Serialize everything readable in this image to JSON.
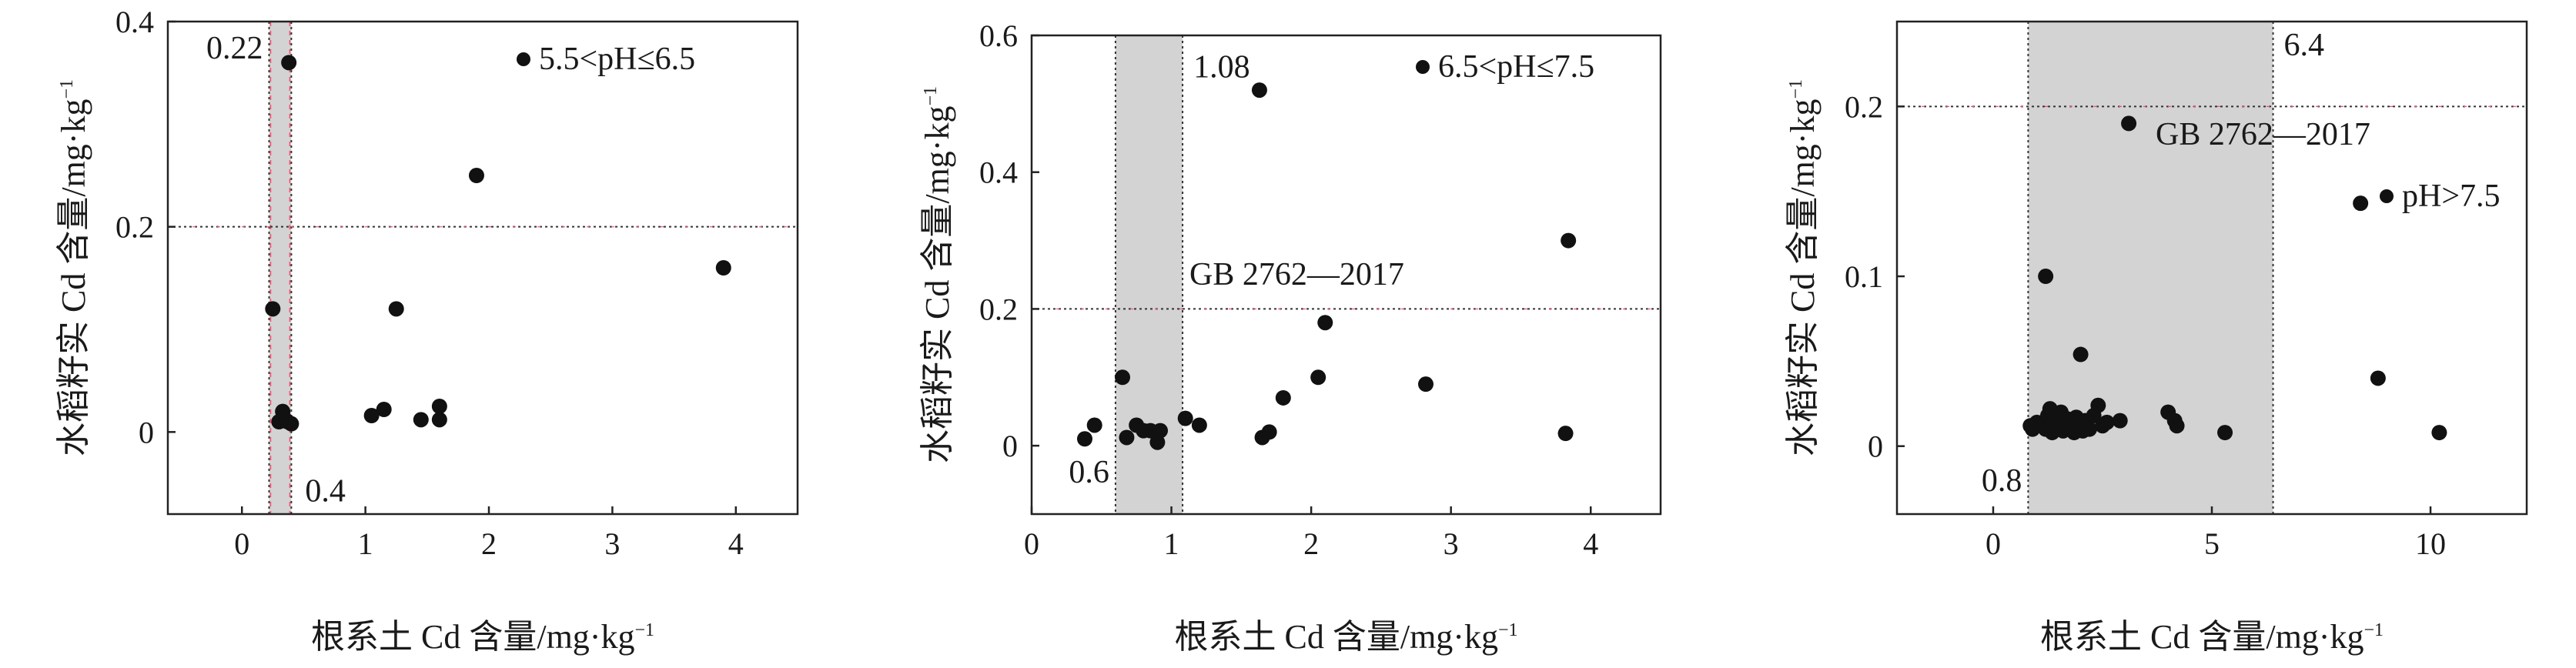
{
  "chart_data": [
    {
      "type": "scatter",
      "title": "",
      "xlabel": "根系土 Cd 含量/mg·kg",
      "xlabel_sup": "−1",
      "ylabel": "水稻籽实 Cd 含量/mg·kg",
      "ylabel_sup": "−1",
      "xlim": [
        -0.6,
        4.5
      ],
      "ylim": [
        -0.08,
        0.4
      ],
      "xticks": [
        0,
        1,
        2,
        3,
        4
      ],
      "xtick_labels": [
        "0",
        "1",
        "2",
        "3",
        "4"
      ],
      "yticks": [
        0,
        0.2,
        0.4
      ],
      "ytick_labels": [
        "0",
        "0.2",
        "0.4"
      ],
      "grid": false,
      "legend": {
        "position": "top-right",
        "label": "5.5<pH≤6.5"
      },
      "shaded_band": {
        "from": 0.22,
        "to": 0.4
      },
      "threshold_line": 0.2,
      "annotations": [
        {
          "text": "0.22",
          "x": 0.22,
          "y": 0.4,
          "anchor": "end"
        },
        {
          "text": "0.4",
          "x": 0.4,
          "y": -0.075,
          "anchor": "start"
        }
      ],
      "series": [
        {
          "x": [
            0.25,
            0.3,
            0.33,
            0.35,
            0.38,
            0.4,
            0.37,
            1.05,
            1.15,
            1.25,
            1.45,
            1.6,
            1.6,
            1.9,
            3.9
          ],
          "y": [
            0.12,
            0.01,
            0.02,
            0.012,
            0.36,
            0.008,
            0.01,
            0.016,
            0.022,
            0.12,
            0.012,
            0.012,
            0.025,
            0.25,
            0.16
          ]
        }
      ]
    },
    {
      "type": "scatter",
      "title": "",
      "xlabel": "根系土 Cd 含量/mg·kg",
      "xlabel_sup": "−1",
      "ylabel": "水稻籽实 Cd 含量/mg·kg",
      "ylabel_sup": "−1",
      "xlim": [
        0,
        4.5
      ],
      "ylim": [
        -0.1,
        0.6
      ],
      "xticks": [
        0,
        1,
        2,
        3,
        4
      ],
      "xtick_labels": [
        "0",
        "1",
        "2",
        "3",
        "4"
      ],
      "yticks": [
        0,
        0.2,
        0.4,
        0.6
      ],
      "ytick_labels": [
        "0",
        "0.2",
        "0.4",
        "0.6"
      ],
      "grid": false,
      "legend": {
        "position": "top-right",
        "label": "6.5<pH≤7.5"
      },
      "shaded_band": {
        "from": 0.6,
        "to": 1.08
      },
      "threshold_line": 0.2,
      "threshold_label": "GB 2762—2017",
      "annotations": [
        {
          "text": "1.08",
          "x": 1.08,
          "y": 0.57,
          "anchor": "start"
        },
        {
          "text": "0.6",
          "x": 0.6,
          "y": -0.065,
          "anchor": "end"
        }
      ],
      "series": [
        {
          "x": [
            0.38,
            0.45,
            0.65,
            0.68,
            0.75,
            0.8,
            0.85,
            0.9,
            0.92,
            1.1,
            1.2,
            1.63,
            1.65,
            1.7,
            1.8,
            2.05,
            2.1,
            2.82,
            3.82,
            3.84
          ],
          "y": [
            0.01,
            0.03,
            0.1,
            0.012,
            0.03,
            0.022,
            0.022,
            0.005,
            0.022,
            0.04,
            0.03,
            0.52,
            0.012,
            0.02,
            0.07,
            0.1,
            0.18,
            0.09,
            0.018,
            0.3
          ]
        }
      ]
    },
    {
      "type": "scatter",
      "title": "",
      "xlabel": "根系土 Cd 含量/mg·kg",
      "xlabel_sup": "−1",
      "ylabel": "水稻籽实 Cd 含量/mg·kg",
      "ylabel_sup": "−1",
      "xlim": [
        -2.2,
        12.2
      ],
      "ylim": [
        -0.04,
        0.25
      ],
      "xticks": [
        0,
        5,
        10
      ],
      "xtick_labels": [
        "0",
        "5",
        "10"
      ],
      "yticks": [
        0,
        0.1,
        0.2
      ],
      "ytick_labels": [
        "0",
        "0.1",
        "0.2"
      ],
      "grid": false,
      "legend": {
        "position": "right",
        "label": "pH>7.5"
      },
      "shaded_band": {
        "from": 0.8,
        "to": 6.4
      },
      "threshold_line": 0.2,
      "threshold_label": "GB 2762—2017",
      "annotations": [
        {
          "text": "6.4",
          "x": 6.4,
          "y": 0.23,
          "anchor": "start"
        },
        {
          "text": "0.8",
          "x": 0.8,
          "y": -0.03,
          "anchor": "end"
        }
      ],
      "series": [
        {
          "x": [
            0.85,
            0.9,
            1.0,
            1.1,
            1.2,
            1.25,
            1.3,
            1.35,
            1.4,
            1.5,
            1.55,
            1.6,
            1.7,
            1.75,
            1.8,
            1.85,
            1.9,
            2.0,
            2.05,
            2.1,
            2.2,
            2.3,
            2.4,
            2.5,
            2.6,
            2.9,
            3.1,
            1.2,
            2.0,
            4.0,
            4.15,
            4.2,
            5.3,
            8.4,
            8.8,
            10.2
          ],
          "y": [
            0.012,
            0.01,
            0.014,
            0.012,
            0.01,
            0.018,
            0.022,
            0.008,
            0.015,
            0.012,
            0.02,
            0.009,
            0.016,
            0.011,
            0.013,
            0.008,
            0.017,
            0.012,
            0.009,
            0.015,
            0.01,
            0.018,
            0.024,
            0.012,
            0.014,
            0.015,
            0.19,
            0.1,
            0.054,
            0.02,
            0.015,
            0.012,
            0.008,
            0.143,
            0.04,
            0.008
          ]
        }
      ]
    }
  ]
}
